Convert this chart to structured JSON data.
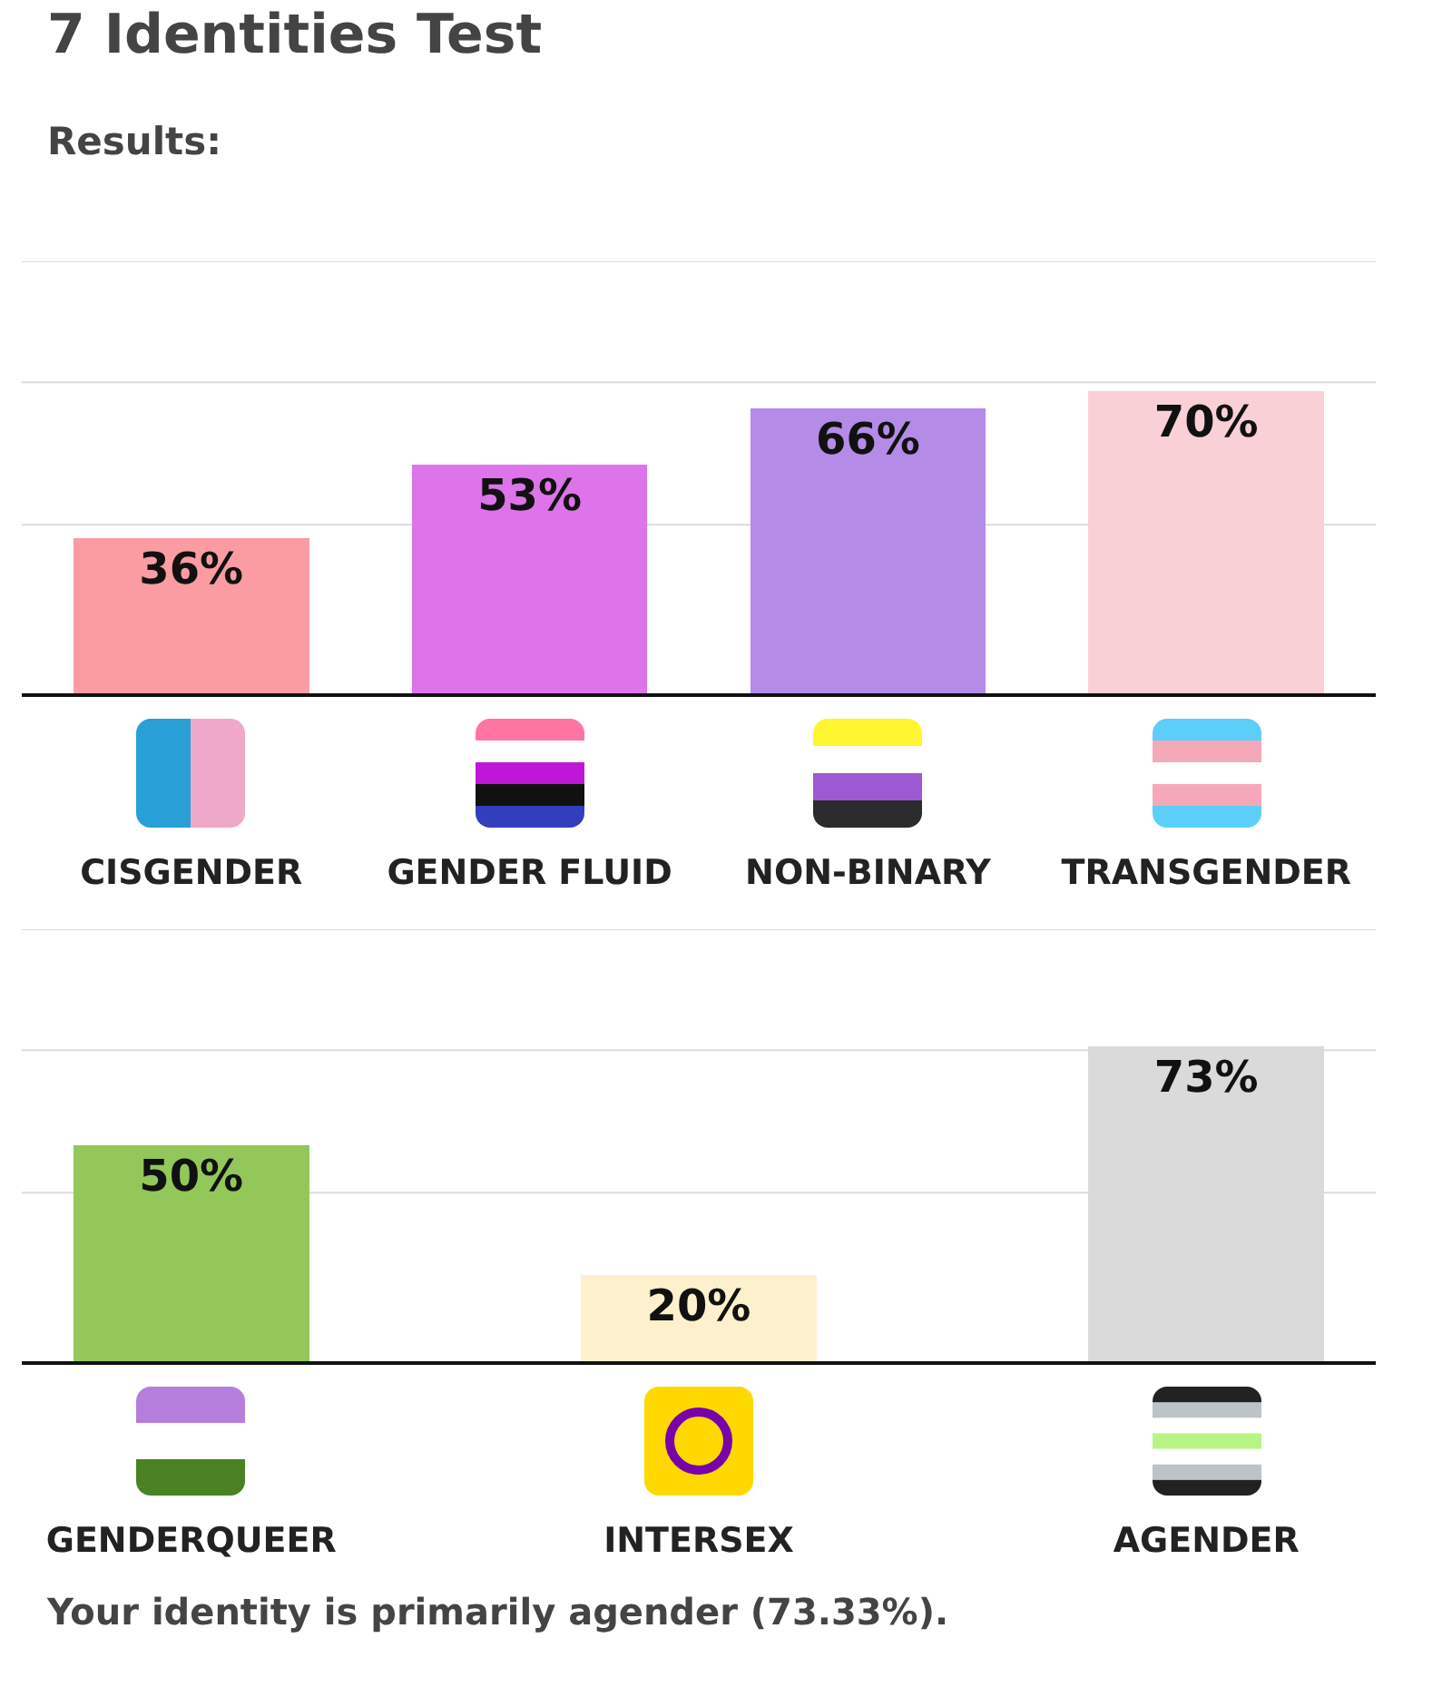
{
  "chart_data": [
    {
      "type": "bar",
      "title": "7 Identities Test",
      "subtitle": "Results:",
      "categories": [
        "CISGENDER",
        "GENDER FLUID",
        "NON-BINARY",
        "TRANSGENDER"
      ],
      "values": [
        36,
        53,
        66,
        70
      ],
      "value_labels": [
        "36%",
        "53%",
        "66%",
        "70%"
      ],
      "colors": [
        "#fb9ca2",
        "#dd74ea",
        "#b58be8",
        "#f9d0d6"
      ],
      "ylim": [
        0,
        100
      ],
      "ref_lines": [
        {
          "axis": "y",
          "value": 39,
          "color": "#dcdcdc"
        },
        {
          "axis": "y",
          "value": 72,
          "color": "#dcdcdc"
        },
        {
          "axis": "y",
          "value": 100,
          "color": "#dcdcdc"
        }
      ],
      "tick_labels": "x"
    },
    {
      "type": "bar",
      "categories": [
        "GENDERQUEER",
        "INTERSEX",
        "AGENDER"
      ],
      "values": [
        50,
        20,
        73
      ],
      "value_labels": [
        "50%",
        "20%",
        "73%"
      ],
      "colors": [
        "#93c75a",
        "#fdf0cc",
        "#dadada"
      ],
      "ylim": [
        0,
        100
      ],
      "ref_lines": [
        {
          "axis": "y",
          "value": 39,
          "color": "#dcdcdc"
        },
        {
          "axis": "y",
          "value": 72,
          "color": "#dcdcdc"
        },
        {
          "axis": "y",
          "value": 100,
          "color": "#dcdcdc"
        }
      ],
      "tick_labels": "x",
      "annotations": [
        "Your identity is primarily agender (73.33%)."
      ]
    }
  ]
}
